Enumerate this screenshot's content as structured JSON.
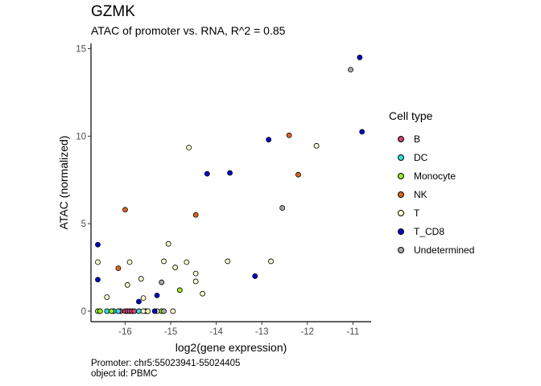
{
  "title": "GZMK",
  "subtitle": "ATAC of promoter vs. RNA, R^2 = 0.85",
  "caption": {
    "line1": "Promoter: chr5:55023941-55024405",
    "line2": "object id: PBMC"
  },
  "chart_data": {
    "type": "scatter",
    "xlabel": "log2(gene expression)",
    "ylabel": "ATAC (normalized)",
    "xlim": [
      -16.75,
      -10.6
    ],
    "ylim": [
      -0.6,
      15.3
    ],
    "xticks": [
      -16,
      -15,
      -14,
      -13,
      -12,
      -11
    ],
    "yticks": [
      0,
      5,
      10,
      15
    ],
    "xtick_labels": [
      "-16",
      "-15",
      "-14",
      "-13",
      "-12",
      "-11"
    ],
    "ytick_labels": [
      "0",
      "5",
      "10",
      "15"
    ],
    "grid": false,
    "legend": {
      "title": "Cell type",
      "placement": "right"
    },
    "series": [
      {
        "name": "B",
        "color": "#cc4477",
        "points": [
          [
            -16.1,
            0
          ],
          [
            -16.0,
            0
          ],
          [
            -15.95,
            0
          ],
          [
            -15.9,
            0
          ],
          [
            -15.85,
            0
          ],
          [
            -15.8,
            0
          ]
        ]
      },
      {
        "name": "DC",
        "color": "#33dddd",
        "points": [
          [
            -16.4,
            0
          ],
          [
            -16.25,
            0
          ],
          [
            -16.15,
            0
          ],
          [
            -15.7,
            0
          ]
        ]
      },
      {
        "name": "Monocyte",
        "color": "#99ee22",
        "points": [
          [
            -16.6,
            0
          ],
          [
            -16.55,
            0
          ],
          [
            -16.3,
            0
          ],
          [
            -15.55,
            0
          ],
          [
            -15.2,
            0
          ],
          [
            -14.8,
            1.2
          ]
        ]
      },
      {
        "name": "NK",
        "color": "#dd6622",
        "points": [
          [
            -16.0,
            5.8
          ],
          [
            -16.15,
            2.45
          ],
          [
            -14.45,
            5.5
          ],
          [
            -12.4,
            10.05
          ],
          [
            -12.2,
            7.8
          ]
        ]
      },
      {
        "name": "T",
        "color": "#ffffcc",
        "points": [
          [
            -16.6,
            2.8
          ],
          [
            -16.4,
            0.8
          ],
          [
            -15.95,
            1.5
          ],
          [
            -15.9,
            2.8
          ],
          [
            -15.65,
            1.85
          ],
          [
            -15.6,
            0.75
          ],
          [
            -15.6,
            0
          ],
          [
            -15.5,
            0
          ],
          [
            -15.3,
            0
          ],
          [
            -15.15,
            2.85
          ],
          [
            -15.05,
            3.85
          ],
          [
            -14.95,
            0
          ],
          [
            -14.9,
            2.5
          ],
          [
            -14.65,
            2.8
          ],
          [
            -14.45,
            2.15
          ],
          [
            -14.45,
            1.7
          ],
          [
            -14.3,
            1.0
          ],
          [
            -14.6,
            9.35
          ],
          [
            -13.75,
            2.85
          ],
          [
            -12.8,
            2.85
          ],
          [
            -11.8,
            9.45
          ]
        ]
      },
      {
        "name": "T_CD8",
        "color": "#0000cc",
        "points": [
          [
            -16.6,
            3.8
          ],
          [
            -16.6,
            1.8
          ],
          [
            -15.7,
            0.55
          ],
          [
            -15.35,
            0
          ],
          [
            -15.3,
            0.9
          ],
          [
            -14.2,
            7.85
          ],
          [
            -13.7,
            7.9
          ],
          [
            -13.15,
            2.0
          ],
          [
            -12.85,
            9.8
          ],
          [
            -10.85,
            14.5
          ],
          [
            -10.8,
            10.25
          ]
        ]
      },
      {
        "name": "Undetermined",
        "color": "#aaaaaa",
        "points": [
          [
            -15.2,
            1.65
          ],
          [
            -15.15,
            0
          ],
          [
            -12.55,
            5.9
          ],
          [
            -11.05,
            13.8
          ]
        ]
      }
    ]
  }
}
